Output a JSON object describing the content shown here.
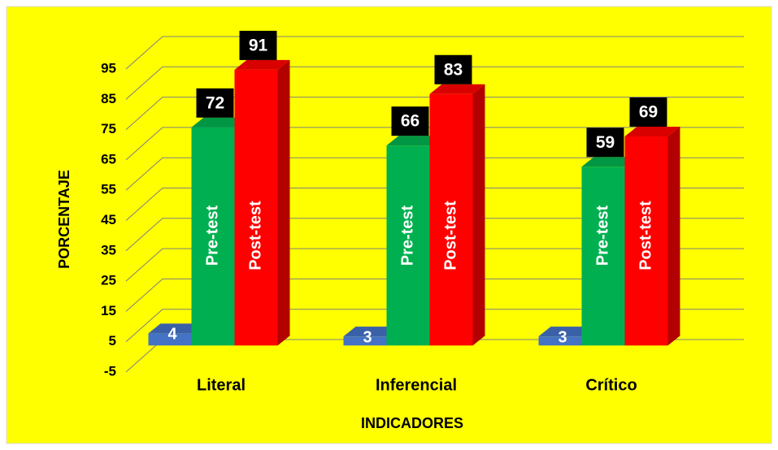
{
  "chart_data": {
    "type": "bar3d",
    "categories": [
      "Literal",
      "Inferencial",
      "Crítico"
    ],
    "series": [
      {
        "color": "#4472c4",
        "values": [
          4,
          3,
          3
        ]
      },
      {
        "name": "Pre-test",
        "color": "#00b050",
        "values": [
          72,
          66,
          59
        ]
      },
      {
        "name": "Post-test",
        "color": "#ff0000",
        "values": [
          91,
          83,
          69
        ]
      }
    ],
    "ylim": [
      -5,
      95
    ],
    "yticks": [
      -5,
      5,
      15,
      25,
      35,
      45,
      55,
      65,
      75,
      85,
      95
    ],
    "ylabel": "PORCENTAJE",
    "xlabel": "INDICADORES",
    "grid": true
  }
}
